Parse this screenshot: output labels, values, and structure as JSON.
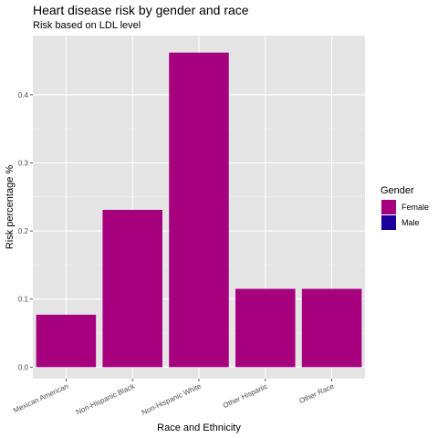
{
  "chart_data": {
    "type": "bar",
    "title": "Heart disease risk by gender and race",
    "subtitle": "Risk based on LDL level",
    "xlabel": "Race and Ethnicity",
    "ylabel": "Risk percentage %",
    "categories": [
      "Mexican American",
      "Non-Hispanic Black",
      "Non-Hispanic White",
      "Other Hispanic",
      "Other Race"
    ],
    "series": [
      {
        "name": "Female",
        "color": "#a6007e",
        "values": [
          0.077,
          0.231,
          0.462,
          0.115,
          0.115
        ]
      },
      {
        "name": "Male",
        "color": "#1b009e",
        "values": [
          0,
          0,
          0,
          0,
          0
        ]
      }
    ],
    "ylim": [
      -0.017,
      0.487
    ],
    "yticks": [
      0.0,
      0.1,
      0.2,
      0.3,
      0.4
    ],
    "ytick_labels": [
      "0.0",
      "0.1",
      "0.2",
      "0.3",
      "0.4"
    ],
    "grid": true,
    "panel_background": "#e5e5e5",
    "legend": {
      "title": "Gender",
      "position": "right",
      "entries": [
        "Female",
        "Male"
      ]
    }
  }
}
